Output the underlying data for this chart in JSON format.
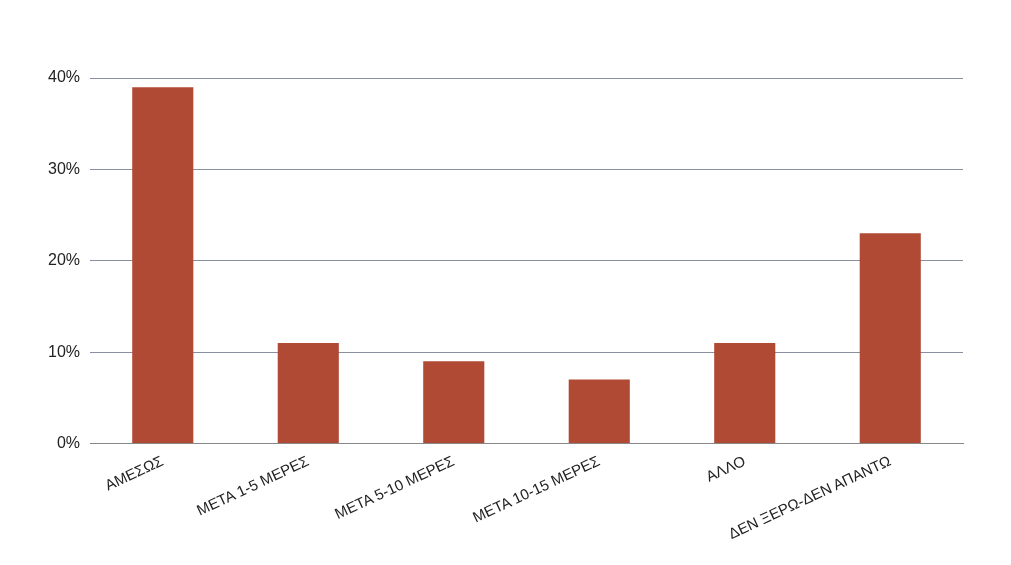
{
  "chart_data": {
    "type": "bar",
    "categories": [
      "ΑΜΕΣΩΣ",
      "ΜΕΤΑ 1-5 ΜΕΡΕΣ",
      "ΜΕΤΑ 5-10 ΜΕΡΕΣ",
      "ΜΕΤΑ 10-15 ΜΕΡΕΣ",
      "ΑΛΛΟ",
      "ΔΕΝ ΞΕΡΩ-ΔΕΝ ΑΠΑΝΤΩ"
    ],
    "values": [
      39,
      11,
      9,
      7,
      11,
      23
    ],
    "color": "#b04a35",
    "ylim": [
      0,
      40
    ],
    "yticks": [
      {
        "value": 0,
        "label": "0%"
      },
      {
        "value": 10,
        "label": "10%"
      },
      {
        "value": 20,
        "label": "20%"
      },
      {
        "value": 30,
        "label": "30%"
      },
      {
        "value": 40,
        "label": "40%"
      }
    ],
    "grid": "y",
    "legend": false
  }
}
